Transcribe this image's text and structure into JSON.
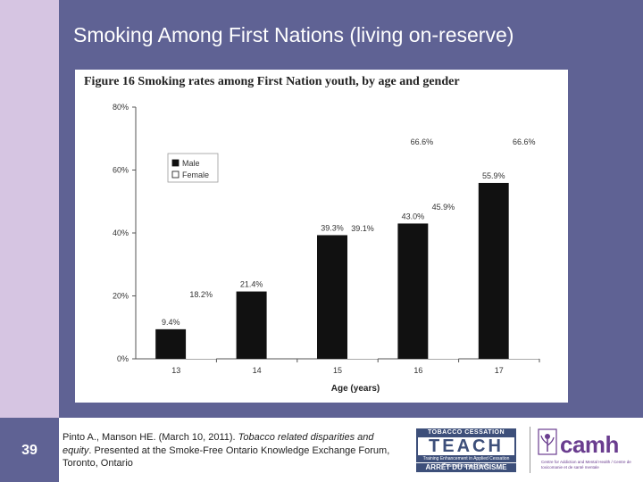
{
  "slide": {
    "title": "Smoking Among First Nations (living on-reserve)",
    "number": "39"
  },
  "figure": {
    "title": "Figure 16 Smoking rates among First Nation youth, by age and gender"
  },
  "chart_data": {
    "type": "bar",
    "title": "Figure 16 Smoking rates among First Nation youth, by age and gender",
    "xlabel": "Age (years)",
    "ylabel": "",
    "categories": [
      "13",
      "14",
      "15",
      "16",
      "17"
    ],
    "series": [
      {
        "name": "Male",
        "values": [
          9.4,
          21.4,
          39.3,
          43.0,
          55.9
        ],
        "color": "#111111",
        "labels": [
          "9.4%",
          "21.4%",
          "39.3%",
          "43.0%",
          "55.9%"
        ]
      },
      {
        "name": "Female",
        "values": [
          18.2,
          null,
          39.1,
          45.9,
          66.6
        ],
        "color": "#ffffff",
        "labels": [
          "18.2%",
          "",
          "39.1%",
          "45.9%",
          "66.6%"
        ]
      }
    ],
    "extra_labels": [
      {
        "category": "16",
        "text": "66.6%"
      }
    ],
    "ylim": [
      0,
      80
    ],
    "yticks": [
      "0%",
      "20%",
      "40%",
      "60%",
      "80%"
    ],
    "legend_position": "upper-left",
    "grid": false
  },
  "citation": {
    "authors": "Pinto A., Manson HE. (March 10, 2011). ",
    "title": "Tobacco related disparities and equity",
    "rest": ". Presented at the Smoke-Free Ontario Knowledge Exchange Forum, Toronto, Ontario"
  },
  "logos": {
    "teach_top": "TOBACCO CESSATION",
    "teach_main": "TEACH",
    "teach_sub": "Training Enhancement in Applied Cessation Counselling and Health",
    "teach_bottom": "ARRÊT DU TABAGISME",
    "camh": "camh",
    "camh_sub": "Centre for Addiction and Mental Health / Centre de toxicomanie et de santé mentale"
  },
  "colors": {
    "background": "#5f6294",
    "left_bar": "#d6c5e2",
    "male": "#111111",
    "female": "#ffffff",
    "camh_purple": "#6a3d8f"
  }
}
